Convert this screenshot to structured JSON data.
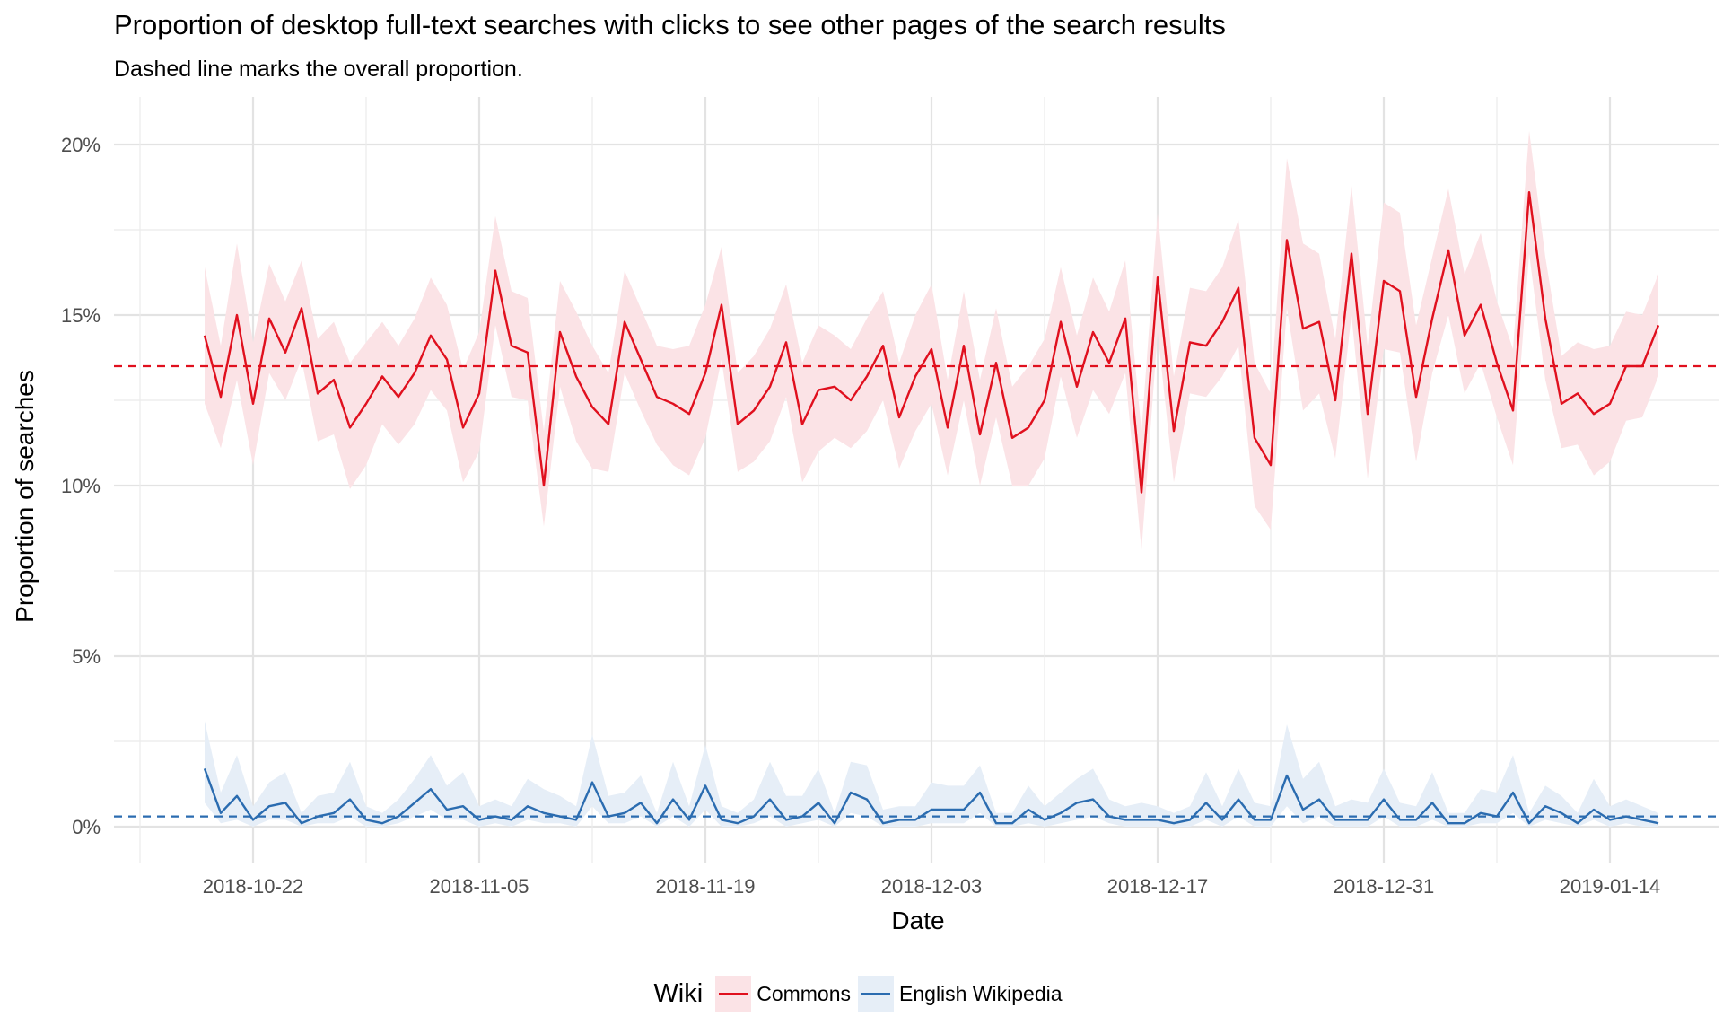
{
  "chart_data": {
    "type": "line",
    "title": "Proportion of desktop full-text searches with clicks to see other pages of the search results",
    "subtitle": "Dashed line marks the overall proportion.",
    "xlabel": "Date",
    "ylabel": "Proportion of searches",
    "x_ticks": [
      "2018-10-22",
      "2018-11-05",
      "2018-11-19",
      "2018-12-03",
      "2018-12-17",
      "2018-12-31",
      "2019-01-14"
    ],
    "y_ticks": [
      "0%",
      "5%",
      "10%",
      "15%",
      "20%"
    ],
    "ylim": [
      -0.008,
      0.21
    ],
    "x_start": "2018-10-19",
    "grid": true,
    "legend": {
      "title": "Wiki",
      "position": "bottom"
    },
    "series": [
      {
        "name": "Commons",
        "color": "#e0101e",
        "band_color": "#fbe3e6",
        "overall": 0.135,
        "values": [
          0.144,
          0.126,
          0.15,
          0.124,
          0.149,
          0.139,
          0.152,
          0.127,
          0.131,
          0.117,
          0.124,
          0.132,
          0.126,
          0.133,
          0.144,
          0.137,
          0.117,
          0.127,
          0.163,
          0.141,
          0.139,
          0.1,
          0.145,
          0.132,
          0.123,
          0.118,
          0.148,
          0.137,
          0.126,
          0.124,
          0.121,
          0.133,
          0.153,
          0.118,
          0.122,
          0.129,
          0.142,
          0.118,
          0.128,
          0.129,
          0.125,
          0.132,
          0.141,
          0.12,
          0.132,
          0.14,
          0.117,
          0.141,
          0.115,
          0.136,
          0.114,
          0.117,
          0.125,
          0.148,
          0.129,
          0.145,
          0.136,
          0.149,
          0.098,
          0.161,
          0.116,
          0.142,
          0.141,
          0.148,
          0.158,
          0.114,
          0.106,
          0.172,
          0.146,
          0.148,
          0.125,
          0.168,
          0.121,
          0.16,
          0.157,
          0.126,
          0.149,
          0.169,
          0.144,
          0.153,
          0.136,
          0.122,
          0.186,
          0.149,
          0.124,
          0.127,
          0.121,
          0.124,
          0.135,
          0.135,
          0.147
        ],
        "lower": [
          0.124,
          0.111,
          0.131,
          0.106,
          0.133,
          0.125,
          0.137,
          0.113,
          0.115,
          0.099,
          0.106,
          0.118,
          0.112,
          0.118,
          0.128,
          0.122,
          0.101,
          0.11,
          0.147,
          0.126,
          0.125,
          0.088,
          0.129,
          0.113,
          0.105,
          0.104,
          0.133,
          0.122,
          0.112,
          0.106,
          0.103,
          0.114,
          0.137,
          0.104,
          0.107,
          0.113,
          0.126,
          0.101,
          0.11,
          0.114,
          0.111,
          0.116,
          0.125,
          0.105,
          0.116,
          0.124,
          0.103,
          0.125,
          0.1,
          0.12,
          0.1,
          0.1,
          0.108,
          0.132,
          0.114,
          0.128,
          0.121,
          0.133,
          0.081,
          0.145,
          0.101,
          0.127,
          0.126,
          0.132,
          0.141,
          0.094,
          0.087,
          0.152,
          0.122,
          0.127,
          0.108,
          0.15,
          0.102,
          0.14,
          0.139,
          0.107,
          0.133,
          0.15,
          0.127,
          0.136,
          0.12,
          0.106,
          0.168,
          0.131,
          0.111,
          0.112,
          0.103,
          0.107,
          0.119,
          0.12,
          0.132
        ],
        "upper": [
          0.164,
          0.141,
          0.171,
          0.142,
          0.165,
          0.154,
          0.166,
          0.143,
          0.148,
          0.136,
          0.142,
          0.148,
          0.141,
          0.149,
          0.161,
          0.153,
          0.134,
          0.145,
          0.179,
          0.157,
          0.155,
          0.116,
          0.16,
          0.151,
          0.141,
          0.133,
          0.163,
          0.152,
          0.141,
          0.14,
          0.141,
          0.153,
          0.17,
          0.133,
          0.138,
          0.146,
          0.159,
          0.136,
          0.147,
          0.144,
          0.14,
          0.149,
          0.157,
          0.136,
          0.15,
          0.159,
          0.131,
          0.157,
          0.131,
          0.152,
          0.129,
          0.135,
          0.143,
          0.164,
          0.144,
          0.161,
          0.151,
          0.166,
          0.116,
          0.18,
          0.132,
          0.158,
          0.157,
          0.164,
          0.178,
          0.136,
          0.127,
          0.196,
          0.171,
          0.168,
          0.143,
          0.188,
          0.141,
          0.183,
          0.18,
          0.147,
          0.167,
          0.187,
          0.162,
          0.174,
          0.154,
          0.14,
          0.204,
          0.167,
          0.138,
          0.142,
          0.14,
          0.141,
          0.151,
          0.15,
          0.162
        ]
      },
      {
        "name": "English Wikipedia",
        "color": "#2b6cb0",
        "band_color": "#e6eef7",
        "overall": 0.003,
        "values": [
          0.017,
          0.004,
          0.009,
          0.002,
          0.006,
          0.007,
          0.001,
          0.003,
          0.004,
          0.008,
          0.002,
          0.001,
          0.003,
          0.007,
          0.011,
          0.005,
          0.006,
          0.002,
          0.003,
          0.002,
          0.006,
          0.004,
          0.003,
          0.002,
          0.013,
          0.003,
          0.004,
          0.007,
          0.001,
          0.008,
          0.002,
          0.012,
          0.002,
          0.001,
          0.003,
          0.008,
          0.002,
          0.003,
          0.007,
          0.001,
          0.01,
          0.008,
          0.001,
          0.002,
          0.002,
          0.005,
          0.005,
          0.005,
          0.01,
          0.001,
          0.001,
          0.005,
          0.002,
          0.004,
          0.007,
          0.008,
          0.003,
          0.002,
          0.002,
          0.002,
          0.001,
          0.002,
          0.007,
          0.002,
          0.008,
          0.002,
          0.002,
          0.015,
          0.005,
          0.008,
          0.002,
          0.002,
          0.002,
          0.008,
          0.002,
          0.002,
          0.007,
          0.001,
          0.001,
          0.004,
          0.003,
          0.01,
          0.001,
          0.006,
          0.004,
          0.001,
          0.005,
          0.002,
          0.003,
          0.002,
          0.001
        ],
        "lower": [
          0.007,
          0.001,
          0.002,
          0.0,
          0.002,
          0.002,
          0.0,
          0.001,
          0.001,
          0.003,
          0.0,
          0.0,
          0.001,
          0.003,
          0.005,
          0.002,
          0.002,
          0.0,
          0.001,
          0.0,
          0.002,
          0.001,
          0.001,
          0.0,
          0.006,
          0.001,
          0.001,
          0.003,
          0.0,
          0.003,
          0.0,
          0.005,
          0.0,
          0.0,
          0.001,
          0.003,
          0.0,
          0.001,
          0.002,
          0.0,
          0.004,
          0.003,
          0.0,
          0.0,
          0.0,
          0.001,
          0.001,
          0.001,
          0.004,
          0.0,
          0.0,
          0.001,
          0.0,
          0.001,
          0.002,
          0.003,
          0.001,
          0.0,
          0.0,
          0.0,
          0.0,
          0.0,
          0.002,
          0.0,
          0.003,
          0.0,
          0.0,
          0.006,
          0.001,
          0.003,
          0.0,
          0.0,
          0.0,
          0.003,
          0.0,
          0.0,
          0.002,
          0.0,
          0.0,
          0.001,
          0.001,
          0.004,
          0.0,
          0.002,
          0.001,
          0.0,
          0.002,
          0.0,
          0.001,
          0.0,
          0.0
        ],
        "upper": [
          0.031,
          0.01,
          0.021,
          0.006,
          0.013,
          0.016,
          0.004,
          0.009,
          0.01,
          0.019,
          0.006,
          0.004,
          0.008,
          0.014,
          0.021,
          0.012,
          0.016,
          0.006,
          0.008,
          0.006,
          0.014,
          0.011,
          0.009,
          0.006,
          0.027,
          0.009,
          0.01,
          0.015,
          0.004,
          0.019,
          0.006,
          0.024,
          0.006,
          0.004,
          0.008,
          0.019,
          0.009,
          0.009,
          0.017,
          0.004,
          0.019,
          0.018,
          0.005,
          0.006,
          0.006,
          0.013,
          0.012,
          0.012,
          0.018,
          0.004,
          0.004,
          0.012,
          0.006,
          0.01,
          0.014,
          0.017,
          0.008,
          0.006,
          0.007,
          0.006,
          0.004,
          0.006,
          0.016,
          0.006,
          0.017,
          0.007,
          0.006,
          0.03,
          0.014,
          0.019,
          0.006,
          0.008,
          0.007,
          0.017,
          0.007,
          0.006,
          0.016,
          0.004,
          0.004,
          0.011,
          0.01,
          0.021,
          0.004,
          0.012,
          0.009,
          0.004,
          0.014,
          0.006,
          0.008,
          0.006,
          0.004
        ]
      }
    ]
  }
}
